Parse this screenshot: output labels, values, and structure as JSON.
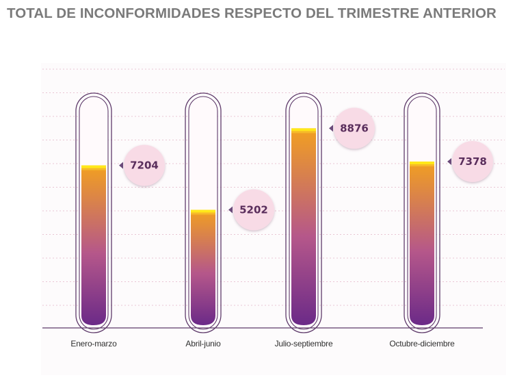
{
  "title": "TOTAL DE INCONFORMIDADES RESPECTO DEL TRIMESTRE ANTERIOR",
  "colors": {
    "tube_outline": "#5e3a6a",
    "fill_top": "#f2a020",
    "fill_bottom": "#6b2a88",
    "highlight": "#ffe81a",
    "bubble": "#f8dbe6",
    "baseline": "#5e3a6a",
    "gridline": "#e9c5d3"
  },
  "chart_data": {
    "type": "bar",
    "categories": [
      "Enero-marzo",
      "Abril-junio",
      "Julio-septiembre",
      "Octubre-diciembre"
    ],
    "values": [
      7204,
      5202,
      8876,
      7378
    ],
    "title": "TOTAL DE INCONFORMIDADES RESPECTO DEL TRIMESTRE ANTERIOR",
    "xlabel": "",
    "ylabel": "",
    "ylim": [
      0,
      10000
    ],
    "grid": true,
    "legend": "none"
  }
}
